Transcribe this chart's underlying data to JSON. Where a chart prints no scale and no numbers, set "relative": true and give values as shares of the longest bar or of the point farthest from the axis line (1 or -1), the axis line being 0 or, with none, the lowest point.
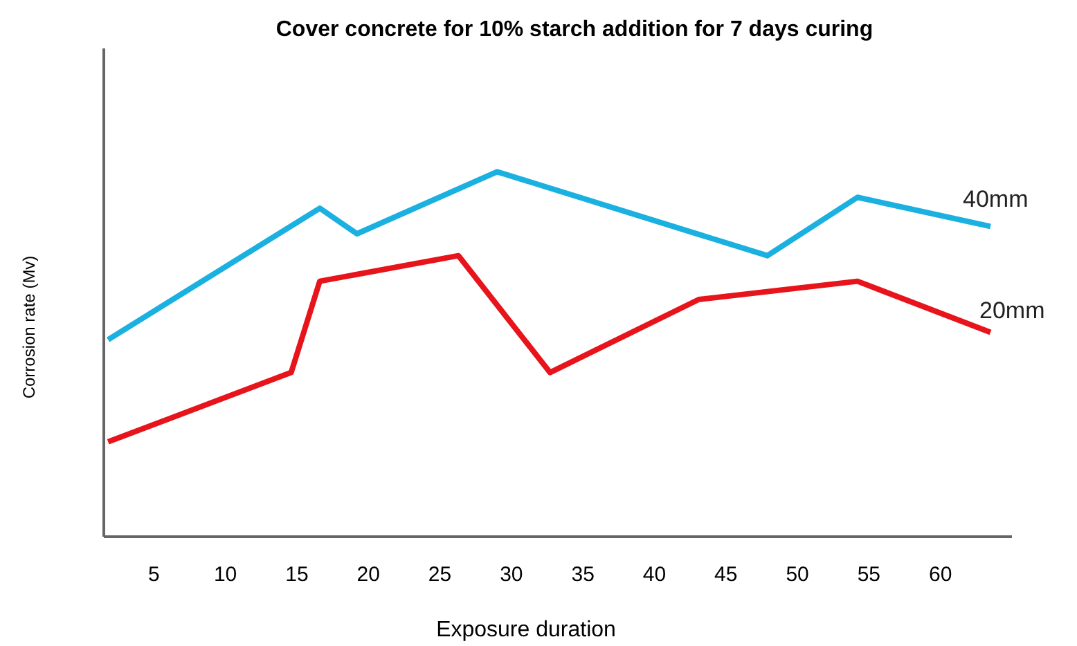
{
  "chart_data": {
    "type": "line",
    "title": "Cover concrete for 10% starch addition for 7 days curing",
    "xlabel": "Exposure duration",
    "ylabel": "Corrosion rate (Mv)",
    "relative": true,
    "xlim": [
      1.5,
      65
    ],
    "xticks": [
      5,
      10,
      15,
      20,
      25,
      30,
      35,
      40,
      45,
      50,
      55,
      60
    ],
    "grid": false,
    "series": [
      {
        "name": "40mm",
        "color": "#1ab0e0",
        "x": [
          1.8,
          16.6,
          19.2,
          29,
          47.9,
          54.2,
          63.5
        ],
        "values": [
          0.54,
          0.9,
          0.83,
          1,
          0.77,
          0.93,
          0.85
        ]
      },
      {
        "name": "20mm",
        "color": "#e8141c",
        "x": [
          1.8,
          14.6,
          16.6,
          26.3,
          32.7,
          43.1,
          54.2,
          63.5
        ],
        "values": [
          0.26,
          0.45,
          0.7,
          0.77,
          0.45,
          0.65,
          0.7,
          0.56
        ]
      }
    ]
  }
}
